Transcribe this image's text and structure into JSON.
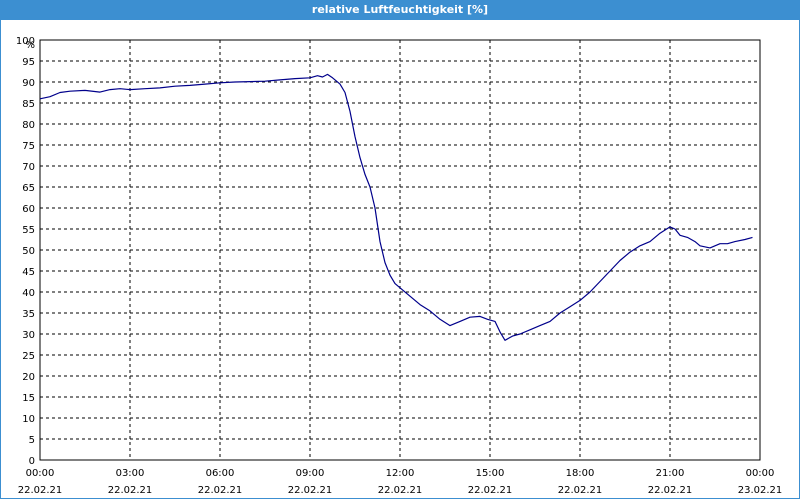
{
  "window": {
    "title": "relative Luftfeuchtigkeit [%]"
  },
  "colors": {
    "title_bar": "#3c8fd1",
    "line": "#00008b",
    "grid": "#000000",
    "axis": "#000000"
  },
  "chart_data": {
    "type": "line",
    "title": "relative Luftfeuchtigkeit [%]",
    "ylabel": "%",
    "xlabel": "",
    "ylim": [
      0,
      100
    ],
    "yticks": [
      0,
      5,
      10,
      15,
      20,
      25,
      30,
      35,
      40,
      45,
      50,
      55,
      60,
      65,
      70,
      75,
      80,
      85,
      90,
      95,
      100
    ],
    "xlim_hours": [
      0,
      24
    ],
    "xticks": [
      {
        "time": "00:00",
        "date": "22.02.21"
      },
      {
        "time": "03:00",
        "date": "22.02.21"
      },
      {
        "time": "06:00",
        "date": "22.02.21"
      },
      {
        "time": "09:00",
        "date": "22.02.21"
      },
      {
        "time": "12:00",
        "date": "22.02.21"
      },
      {
        "time": "15:00",
        "date": "22.02.21"
      },
      {
        "time": "18:00",
        "date": "22.02.21"
      },
      {
        "time": "21:00",
        "date": "22.02.21"
      },
      {
        "time": "00:00",
        "date": "23.02.21"
      }
    ],
    "grid": true,
    "grid_style": "dashed",
    "series": [
      {
        "color": "#00008b",
        "x": [
          "22.02.21 00:00",
          "22.02.21 00:20",
          "22.02.21 00:40",
          "22.02.21 01:00",
          "22.02.21 01:30",
          "22.02.21 02:00",
          "22.02.21 02:20",
          "22.02.21 02:40",
          "22.02.21 03:00",
          "22.02.21 03:30",
          "22.02.21 04:00",
          "22.02.21 04:30",
          "22.02.21 05:00",
          "22.02.21 05:30",
          "22.02.21 06:00",
          "22.02.21 06:30",
          "22.02.21 07:00",
          "22.02.21 07:30",
          "22.02.21 08:00",
          "22.02.21 08:30",
          "22.02.21 09:00",
          "22.02.21 09:15",
          "22.02.21 09:25",
          "22.02.21 09:35",
          "22.02.21 09:45",
          "22.02.21 10:00",
          "22.02.21 10:10",
          "22.02.21 10:20",
          "22.02.21 10:30",
          "22.02.21 10:40",
          "22.02.21 10:50",
          "22.02.21 11:00",
          "22.02.21 11:10",
          "22.02.21 11:20",
          "22.02.21 11:30",
          "22.02.21 11:40",
          "22.02.21 11:50",
          "22.02.21 12:00",
          "22.02.21 12:20",
          "22.02.21 12:40",
          "22.02.21 13:00",
          "22.02.21 13:20",
          "22.02.21 13:40",
          "22.02.21 14:00",
          "22.02.21 14:20",
          "22.02.21 14:40",
          "22.02.21 14:55",
          "22.02.21 15:10",
          "22.02.21 15:20",
          "22.02.21 15:30",
          "22.02.21 15:45",
          "22.02.21 16:00",
          "22.02.21 16:20",
          "22.02.21 16:40",
          "22.02.21 17:00",
          "22.02.21 17:20",
          "22.02.21 17:40",
          "22.02.21 18:00",
          "22.02.21 18:20",
          "22.02.21 18:40",
          "22.02.21 19:00",
          "22.02.21 19:20",
          "22.02.21 19:40",
          "22.02.21 20:00",
          "22.02.21 20:20",
          "22.02.21 20:40",
          "22.02.21 21:00",
          "22.02.21 21:10",
          "22.02.21 21:20",
          "22.02.21 21:35",
          "22.02.21 21:50",
          "22.02.21 22:00",
          "22.02.21 22:20",
          "22.02.21 22:40",
          "22.02.21 22:55",
          "22.02.21 23:10",
          "22.02.21 23:30",
          "22.02.21 23:45"
        ],
        "values": [
          86,
          86.5,
          87.5,
          87.8,
          88,
          87.6,
          88.2,
          88.4,
          88.2,
          88.4,
          88.6,
          89,
          89.2,
          89.5,
          89.8,
          90,
          90.1,
          90.2,
          90.5,
          90.8,
          91,
          91.5,
          91.2,
          91.8,
          91,
          89.5,
          87.5,
          83,
          77,
          72,
          68,
          65,
          60,
          52,
          47,
          44,
          42,
          41,
          39,
          37,
          35.5,
          33.5,
          32,
          33,
          34,
          34.2,
          33.5,
          33,
          30.5,
          28.5,
          29.5,
          30,
          31,
          32,
          33,
          35,
          36.5,
          38,
          40,
          42.5,
          45,
          47.5,
          49.5,
          51,
          52,
          54,
          55.5,
          55,
          53.5,
          53,
          52,
          51,
          50.5,
          51.5,
          51.5,
          52,
          52.5,
          53
        ]
      }
    ]
  }
}
